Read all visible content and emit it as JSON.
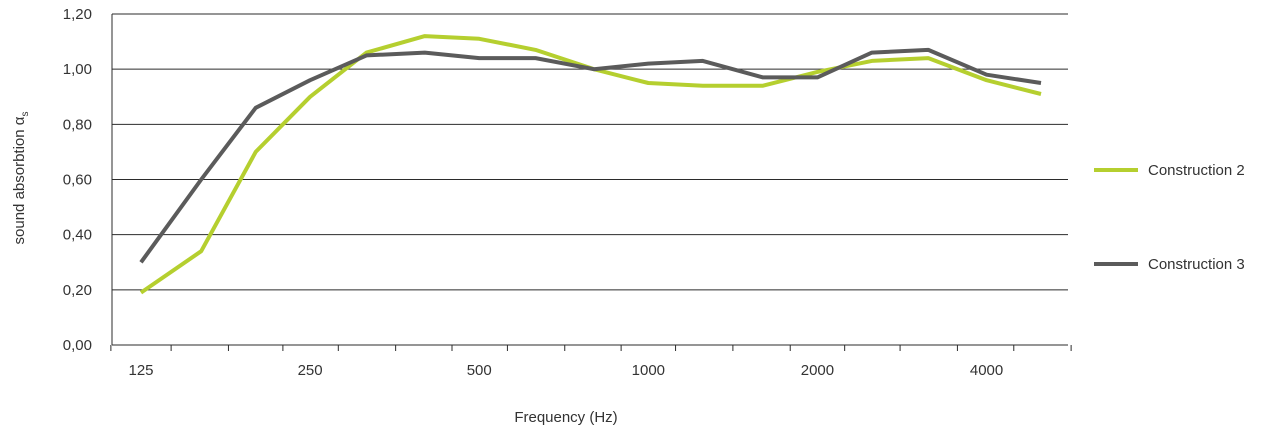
{
  "chart_data": {
    "type": "line",
    "title": "",
    "xlabel": "Frequency (Hz)",
    "ylabel_main": "sound absorbtion α",
    "ylabel_sub": "s",
    "ylim": [
      0,
      1.2
    ],
    "yticks": [
      "0,00",
      "0,20",
      "0,40",
      "0,60",
      "0,80",
      "1,00",
      "1,20"
    ],
    "ytick_values": [
      0,
      0.2,
      0.4,
      0.6,
      0.8,
      1.0,
      1.2
    ],
    "x": [
      125,
      160,
      200,
      250,
      315,
      400,
      500,
      630,
      800,
      1000,
      1250,
      1600,
      2000,
      2500,
      3150,
      4000,
      5000
    ],
    "xticks": [
      "125",
      "250",
      "500",
      "1000",
      "2000",
      "4000"
    ],
    "xtick_values": [
      125,
      250,
      500,
      1000,
      2000,
      4000
    ],
    "grid": true,
    "legend_position": "right",
    "series": [
      {
        "name": "Construction 2",
        "color": "#b5cf2f",
        "values": [
          0.19,
          0.34,
          0.7,
          0.9,
          1.06,
          1.12,
          1.11,
          1.07,
          1.0,
          0.95,
          0.94,
          0.94,
          0.99,
          1.03,
          1.04,
          0.96,
          0.91
        ]
      },
      {
        "name": "Construction 3",
        "color": "#5b5b5b",
        "values": [
          0.3,
          0.6,
          0.86,
          0.96,
          1.05,
          1.06,
          1.04,
          1.04,
          1.0,
          1.02,
          1.03,
          0.97,
          0.97,
          1.06,
          1.07,
          0.98,
          0.95
        ]
      }
    ]
  }
}
